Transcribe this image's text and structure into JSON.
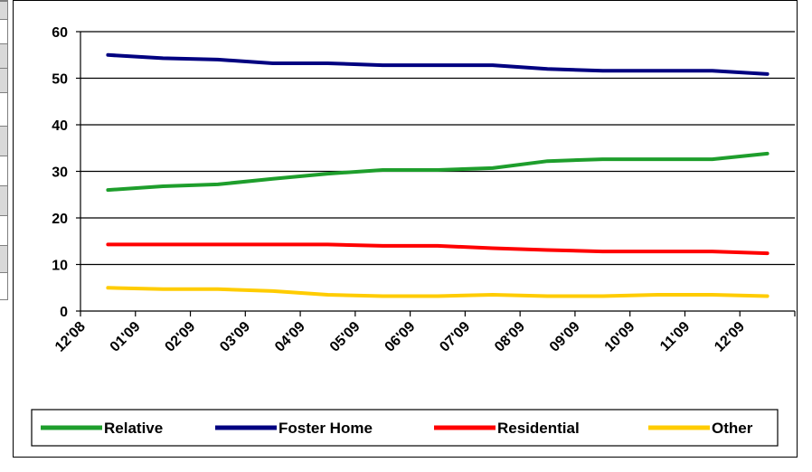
{
  "chart_data": {
    "type": "line",
    "categories": [
      "12'08",
      "01'09",
      "02'09",
      "03'09",
      "04'09",
      "05'09",
      "06'09",
      "07'09",
      "08'09",
      "09'09",
      "10'09",
      "11'09",
      "12'09"
    ],
    "ylim": [
      0,
      60
    ],
    "yticks": [
      0,
      10,
      20,
      30,
      40,
      50,
      60
    ],
    "grid": true,
    "legend_position": "bottom",
    "series": [
      {
        "name": "Relative",
        "color": "#1e9e2c",
        "values": [
          26,
          26.8,
          27.2,
          28.4,
          29.5,
          30.3,
          30.3,
          30.7,
          32.2,
          32.6,
          32.6,
          32.6,
          33.8
        ]
      },
      {
        "name": "Foster Home",
        "color": "#000080",
        "values": [
          55,
          54.3,
          54,
          53.2,
          53.2,
          52.8,
          52.8,
          52.8,
          52,
          51.6,
          51.6,
          51.6,
          50.9
        ]
      },
      {
        "name": "Residential",
        "color": "#ff0000",
        "values": [
          14.3,
          14.3,
          14.3,
          14.3,
          14.3,
          14,
          14,
          13.5,
          13.1,
          12.8,
          12.8,
          12.8,
          12.4
        ]
      },
      {
        "name": "Other",
        "color": "#ffcc00",
        "values": [
          5,
          4.7,
          4.7,
          4.3,
          3.5,
          3.2,
          3.2,
          3.5,
          3.2,
          3.2,
          3.5,
          3.5,
          3.2
        ]
      }
    ]
  }
}
